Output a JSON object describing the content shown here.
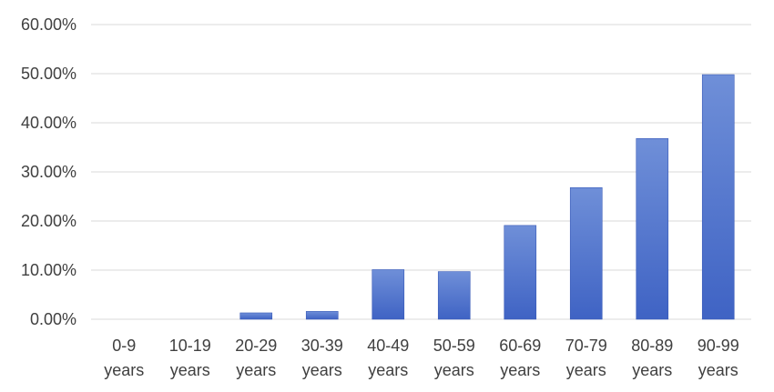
{
  "chart_data": {
    "type": "bar",
    "title": "",
    "xlabel": "",
    "ylabel": "",
    "categories": [
      [
        "0-9",
        "years"
      ],
      [
        "10-19",
        "years"
      ],
      [
        "20-29",
        "years"
      ],
      [
        "30-39",
        "years"
      ],
      [
        "40-49",
        "years"
      ],
      [
        "50-59",
        "years"
      ],
      [
        "60-69",
        "years"
      ],
      [
        "70-79",
        "years"
      ],
      [
        "80-89",
        "years"
      ],
      [
        "90-99",
        "years"
      ]
    ],
    "values": [
      0.0,
      0.0,
      1.3,
      1.6,
      10.1,
      9.7,
      19.1,
      26.8,
      36.8,
      49.8
    ],
    "ylim": [
      0,
      60
    ],
    "yticks": [
      0,
      10,
      20,
      30,
      40,
      50,
      60
    ],
    "ytick_labels": [
      "0.00%",
      "10.00%",
      "20.00%",
      "30.00%",
      "40.00%",
      "50.00%",
      "60.00%"
    ],
    "grid": true,
    "legend": "none",
    "colors": {
      "bar_top": "#6f8fd8",
      "bar_bottom": "#3f63c4",
      "bar_stroke": "#3a5bb8",
      "grid": "#d9d9d9",
      "text": "#404040"
    }
  }
}
